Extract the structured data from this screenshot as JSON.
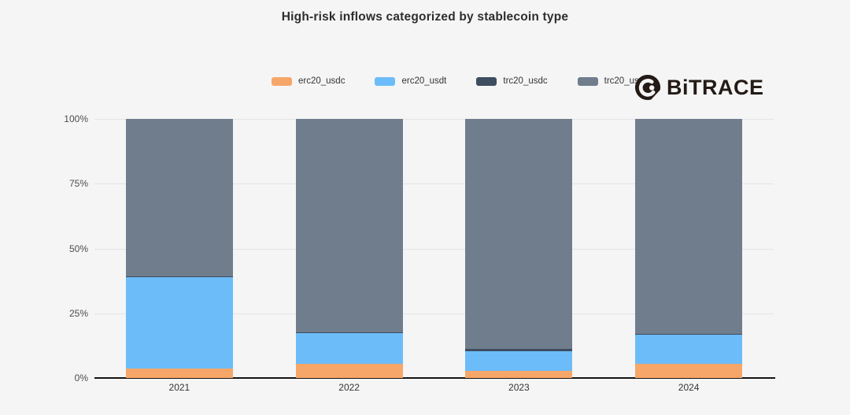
{
  "page": {
    "background": "#f5f5f6"
  },
  "header": {
    "title": "High-risk inflows categorized by stablecoin type"
  },
  "logo": {
    "text": "BiTRACE",
    "color": "#241a16"
  },
  "chart_data": {
    "type": "bar",
    "stacked": true,
    "stack_unit": "percent",
    "title": "High-risk inflows categorized by stablecoin type",
    "xlabel": "",
    "ylabel": "",
    "ylim": [
      0,
      100
    ],
    "grid": true,
    "legend_position": "top-center",
    "categories": [
      "2021",
      "2022",
      "2023",
      "2024"
    ],
    "series": [
      {
        "name": "erc20_usdc",
        "color": "#f7a669",
        "values": [
          3.8,
          5.4,
          2.7,
          5.5
        ]
      },
      {
        "name": "erc20_usdt",
        "color": "#6cbcf9",
        "values": [
          35.2,
          12.0,
          7.6,
          11.2
        ]
      },
      {
        "name": "trc20_usdc",
        "color": "#3e4d5f",
        "values": [
          0.2,
          0.2,
          0.9,
          0.2
        ]
      },
      {
        "name": "trc20_usdt",
        "color": "#6f7d8c",
        "values": [
          60.8,
          82.4,
          88.8,
          83.1
        ]
      }
    ],
    "y_ticks": [
      {
        "value": 0,
        "label": "0%"
      },
      {
        "value": 25,
        "label": "25%"
      },
      {
        "value": 50,
        "label": "50%"
      },
      {
        "value": 75,
        "label": "75%"
      },
      {
        "value": 100,
        "label": "100%"
      }
    ]
  }
}
